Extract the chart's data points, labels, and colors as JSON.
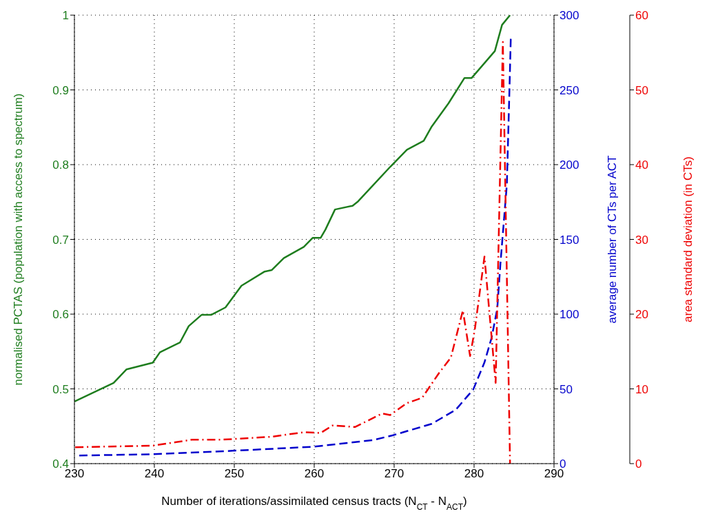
{
  "chart_data": {
    "type": "line",
    "xlabel": "Number of iterations/assimilated census tracts (N$_{CT}$ - N$_{ACT}$)",
    "ylabel": "normalised PCTAS (population with access to spectrum)",
    "y2label": "average number of CTs per ACT",
    "y3label": "area standard deviation (in CTs)",
    "xlim": [
      230,
      290
    ],
    "xticks": [
      230,
      240,
      250,
      260,
      270,
      280,
      290
    ],
    "ylim": [
      0.4,
      1
    ],
    "yticks": [
      0.4,
      0.5,
      0.6,
      0.7,
      0.8,
      0.9,
      1
    ],
    "y2lim": [
      0,
      300
    ],
    "y2ticks": [
      0,
      50,
      100,
      150,
      200,
      250,
      300
    ],
    "y3lim": [
      0,
      60
    ],
    "y3ticks": [
      0,
      10,
      20,
      30,
      40,
      50,
      60
    ],
    "grid": true,
    "marker": "none",
    "series": [
      {
        "color": "#1e7d1e",
        "line_style": "solid",
        "x": [
          230,
          234.9,
          236.5,
          239.8,
          240.7,
          243.2,
          244.3,
          245.9,
          247.1,
          248.9,
          250.9,
          253.8,
          254.7,
          256.2,
          258.7,
          259.8,
          260.8,
          261.4,
          262.6,
          264.8,
          265.5,
          269.5,
          271.6,
          273.7,
          274.7,
          276.8,
          278.8,
          279.7,
          282.6,
          283.5,
          284.5
        ],
        "values": [
          0.483,
          0.508,
          0.526,
          0.535,
          0.549,
          0.562,
          0.584,
          0.599,
          0.599,
          0.609,
          0.638,
          0.657,
          0.659,
          0.675,
          0.69,
          0.702,
          0.702,
          0.713,
          0.74,
          0.745,
          0.751,
          0.797,
          0.82,
          0.832,
          0.851,
          0.882,
          0.916,
          0.916,
          0.952,
          0.987,
          1.0
        ]
      },
      {
        "color": "#0000cc",
        "line_style": "dashed",
        "axis": "y2",
        "x": [
          230.6,
          239.8,
          249.8,
          259.9,
          265.1,
          267.4,
          269.8,
          274.7,
          277.7,
          279.9,
          281.3,
          282.2,
          282.9,
          283.3,
          284.1,
          284.4,
          284.6
        ],
        "values": [
          5.4,
          6.3,
          8.6,
          11.3,
          14.4,
          15.8,
          18.9,
          26.6,
          36,
          49.6,
          67.7,
          84.3,
          103.7,
          134,
          186.7,
          245,
          286
        ]
      },
      {
        "color": "#ee0000",
        "line_style": "dashdot",
        "axis": "y3",
        "x": [
          230.1,
          239.8,
          244.7,
          248.4,
          254.7,
          258.7,
          260.8,
          262.3,
          265.1,
          268.5,
          269.5,
          271.6,
          273.5,
          275.6,
          277.1,
          278.6,
          279.5,
          280.1,
          281.3,
          282.7,
          283.6,
          284.5
        ],
        "values": [
          2.2,
          2.4,
          3.2,
          3.2,
          3.6,
          4.2,
          4.1,
          5.1,
          4.9,
          6.7,
          6.5,
          8.1,
          8.8,
          12.1,
          14.2,
          20.5,
          14.4,
          18,
          27.7,
          10.8,
          56.4,
          0
        ]
      }
    ]
  }
}
